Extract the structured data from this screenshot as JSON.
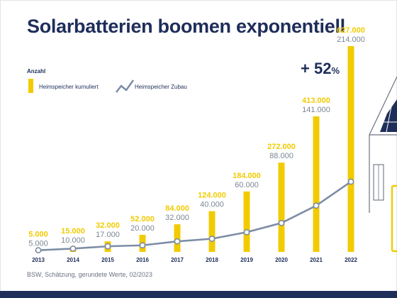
{
  "title": "Solarbatterien boomen exponentiell",
  "legend": {
    "heading": "Anzahl",
    "bars": "Heimspeicher kumuliert",
    "line": "Heimspeicher Zubau"
  },
  "growth": {
    "value": "+ 52",
    "unit": "%"
  },
  "source": "BSW, Schätzung, gerundete Werte, 02/2023",
  "colors": {
    "bar": "#f1cb00",
    "line": "#7d8da6",
    "navy": "#1e2d5a",
    "label_gray": "#7c8793"
  },
  "chart_data": {
    "type": "bar",
    "categories": [
      "2013",
      "2014",
      "2015",
      "2016",
      "2017",
      "2018",
      "2019",
      "2020",
      "2021",
      "2022"
    ],
    "series": [
      {
        "name": "Heimspeicher kumuliert",
        "type": "bar",
        "values": [
          5000,
          15000,
          32000,
          52000,
          84000,
          124000,
          184000,
          272000,
          413000,
          627000
        ],
        "labels": [
          "5.000",
          "15.000",
          "32.000",
          "52.000",
          "84.000",
          "124.000",
          "184.000",
          "272.000",
          "413.000",
          "627.000"
        ]
      },
      {
        "name": "Heimspeicher Zubau",
        "type": "line",
        "values": [
          5000,
          10000,
          17000,
          20000,
          32000,
          40000,
          60000,
          88000,
          141000,
          214000
        ],
        "labels": [
          "5.000",
          "10.000",
          "17.000",
          "20.000",
          "32.000",
          "40.000",
          "60.000",
          "88.000",
          "141.000",
          "214.000"
        ]
      }
    ],
    "ylim": [
      0,
      627000
    ],
    "grid": false,
    "legend_position": "top-left"
  }
}
